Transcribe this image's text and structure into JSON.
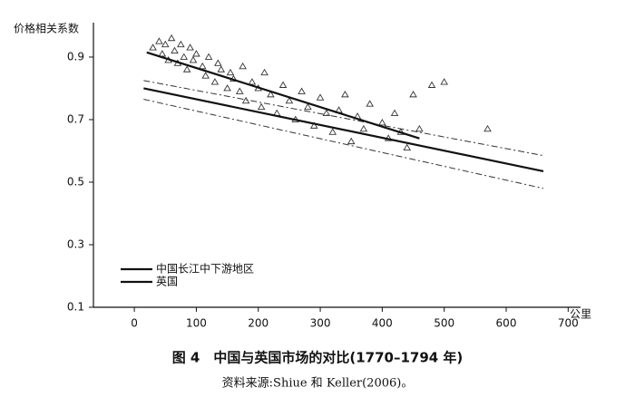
{
  "chart_data": {
    "type": "scatter",
    "title": "图 4　中国与英国市场的对比(1770–1794 年)",
    "source": "资料来源:Shiue 和 Keller(2006)。",
    "y_label": "价格相关系数",
    "x_label": "公里",
    "xlim": [
      -66,
      720
    ],
    "xticks": [
      0,
      100,
      200,
      300,
      400,
      500,
      600,
      700
    ],
    "ylim": [
      0.1,
      1.01
    ],
    "yticks": [
      0.1,
      0.3,
      0.5,
      0.7,
      0.9
    ],
    "grid": false,
    "legend": "lower left",
    "points": {
      "color": "#333",
      "x": [
        30,
        40,
        45,
        50,
        55,
        60,
        65,
        70,
        75,
        80,
        85,
        90,
        95,
        100,
        110,
        115,
        120,
        130,
        135,
        140,
        150,
        155,
        160,
        170,
        175,
        180,
        190,
        200,
        205,
        210,
        220,
        230,
        240,
        250,
        260,
        270,
        280,
        290,
        300,
        310,
        320,
        330,
        340,
        350,
        360,
        370,
        380,
        400,
        410,
        420,
        430,
        440,
        450,
        460,
        480,
        500,
        570
      ],
      "values": [
        0.93,
        0.95,
        0.91,
        0.94,
        0.89,
        0.96,
        0.92,
        0.88,
        0.94,
        0.9,
        0.86,
        0.93,
        0.89,
        0.91,
        0.87,
        0.84,
        0.9,
        0.82,
        0.88,
        0.86,
        0.8,
        0.85,
        0.83,
        0.79,
        0.87,
        0.76,
        0.82,
        0.8,
        0.74,
        0.85,
        0.78,
        0.72,
        0.81,
        0.76,
        0.7,
        0.79,
        0.74,
        0.68,
        0.77,
        0.72,
        0.66,
        0.73,
        0.78,
        0.63,
        0.71,
        0.67,
        0.75,
        0.69,
        0.64,
        0.72,
        0.66,
        0.61,
        0.78,
        0.67,
        0.81,
        0.82,
        0.67
      ]
    },
    "series": [
      {
        "name": "中国长江中下游地区",
        "color": "#111",
        "style": "solid",
        "x": [
          20,
          460
        ],
        "values": [
          0.915,
          0.64
        ]
      },
      {
        "name": "英国",
        "color": "#111",
        "style": "solid",
        "x": [
          15,
          660
        ],
        "values": [
          0.8,
          0.535
        ]
      }
    ],
    "bands": [
      {
        "color": "#333",
        "style": "dashdot",
        "x": [
          15,
          660
        ],
        "values": [
          0.825,
          0.585
        ]
      },
      {
        "color": "#333",
        "style": "dashdot",
        "x": [
          15,
          660
        ],
        "values": [
          0.765,
          0.48
        ]
      }
    ]
  }
}
